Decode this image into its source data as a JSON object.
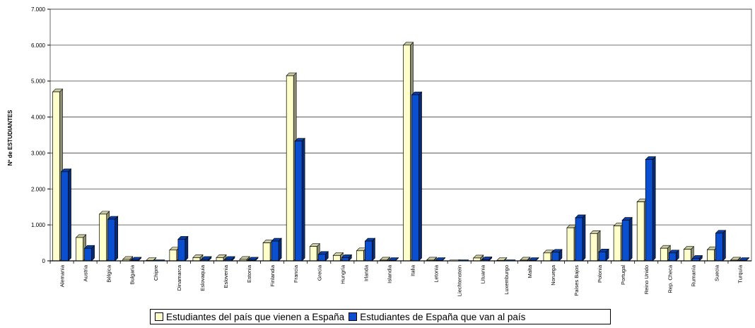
{
  "chart_data": {
    "type": "bar",
    "ylabel": "Nº de ESTUDIANTES",
    "xlabel": "",
    "title": "",
    "ylim": [
      0,
      7000
    ],
    "yticks": [
      "0",
      "1.000",
      "2.000",
      "3.000",
      "4.000",
      "5.000",
      "6.000",
      "7.000"
    ],
    "grid": true,
    "legend_position": "bottom",
    "categories": [
      "Alemania",
      "Austria",
      "Bélgica",
      "Bulgaria",
      "Chipre",
      "Dinamarca",
      "Eslovaquia",
      "Eslovenia",
      "Estonia",
      "Finlandia",
      "Francia",
      "Grecia",
      "Hungría",
      "Irlanda",
      "Islandia",
      "Italia",
      "Letonia",
      "Liechtenstein",
      "Lituania",
      "Luxemburgo",
      "Malta",
      "Noruega",
      "Países Bajos",
      "Polonia",
      "Portugal",
      "Reino Unido",
      "Rep. Checa",
      "Rumanía",
      "Suecia",
      "Turquía"
    ],
    "series": [
      {
        "name": "Estudiantes del país que vienen a España",
        "color": "#ffffcc",
        "values": [
          4700,
          650,
          1300,
          40,
          10,
          300,
          90,
          90,
          40,
          500,
          5150,
          400,
          150,
          280,
          20,
          6000,
          20,
          5,
          80,
          10,
          20,
          220,
          920,
          760,
          970,
          1640,
          350,
          320,
          310,
          20
        ]
      },
      {
        "name": "Estudiantes de España que van al país",
        "color": "#0a4fd0",
        "values": [
          2480,
          350,
          1160,
          20,
          5,
          600,
          40,
          40,
          20,
          550,
          3330,
          180,
          90,
          550,
          10,
          4620,
          10,
          5,
          30,
          5,
          10,
          240,
          1200,
          250,
          1130,
          2820,
          220,
          70,
          770,
          10
        ]
      }
    ]
  }
}
